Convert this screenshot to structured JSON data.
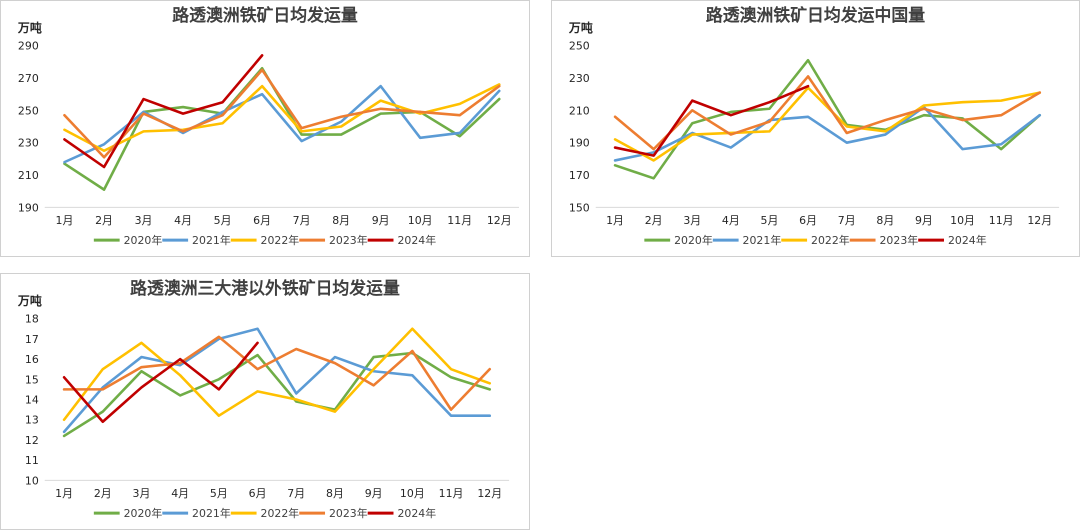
{
  "chart_data": [
    {
      "type": "line",
      "title": "路透澳洲铁矿日均发运量",
      "ylabel": "万吨",
      "xlabel": "",
      "categories": [
        "1月",
        "2月",
        "3月",
        "4月",
        "5月",
        "6月",
        "7月",
        "8月",
        "9月",
        "10月",
        "11月",
        "12月"
      ],
      "ylim": [
        190,
        290
      ],
      "yticks": [
        190,
        210,
        230,
        250,
        270,
        290
      ],
      "series": [
        {
          "name": "2020年",
          "color": "#70ad47",
          "values": [
            217,
            201,
            249,
            252,
            248,
            276,
            235,
            235,
            248,
            249,
            234,
            257
          ]
        },
        {
          "name": "2021年",
          "color": "#5b9bd5",
          "values": [
            218,
            229,
            249,
            236,
            249,
            260,
            231,
            243,
            265,
            233,
            236,
            262
          ]
        },
        {
          "name": "2022年",
          "color": "#ffc000",
          "values": [
            238,
            225,
            237,
            238,
            242,
            265,
            237,
            240,
            256,
            248,
            254,
            266
          ]
        },
        {
          "name": "2023年",
          "color": "#ed7d31",
          "values": [
            247,
            221,
            248,
            237,
            247,
            275,
            239,
            246,
            251,
            249,
            247,
            265
          ]
        },
        {
          "name": "2024年",
          "color": "#c00000",
          "values": [
            232,
            215,
            257,
            248,
            255,
            284,
            null,
            null,
            null,
            null,
            null,
            null
          ]
        }
      ]
    },
    {
      "type": "line",
      "title": "路透澳洲铁矿日均发运中国量",
      "ylabel": "万吨",
      "xlabel": "",
      "categories": [
        "1月",
        "2月",
        "3月",
        "4月",
        "5月",
        "6月",
        "7月",
        "8月",
        "9月",
        "10月",
        "11月",
        "12月"
      ],
      "ylim": [
        150,
        250
      ],
      "yticks": [
        150,
        170,
        190,
        210,
        230,
        250
      ],
      "series": [
        {
          "name": "2020年",
          "color": "#70ad47",
          "values": [
            176,
            168,
            202,
            209,
            211,
            241,
            201,
            198,
            207,
            205,
            186,
            207
          ]
        },
        {
          "name": "2021年",
          "color": "#5b9bd5",
          "values": [
            179,
            184,
            196,
            187,
            204,
            206,
            190,
            195,
            212,
            186,
            189,
            207
          ]
        },
        {
          "name": "2022年",
          "color": "#ffc000",
          "values": [
            192,
            179,
            195,
            196,
            197,
            224,
            200,
            197,
            213,
            215,
            216,
            221
          ]
        },
        {
          "name": "2023年",
          "color": "#ed7d31",
          "values": [
            206,
            186,
            210,
            195,
            203,
            231,
            196,
            204,
            211,
            204,
            207,
            221
          ]
        },
        {
          "name": "2024年",
          "color": "#c00000",
          "values": [
            187,
            182,
            216,
            207,
            215,
            225,
            null,
            null,
            null,
            null,
            null,
            null
          ]
        }
      ]
    },
    {
      "type": "line",
      "title": "路透澳洲三大港以外铁矿日均发运量",
      "ylabel": "万吨",
      "xlabel": "",
      "categories": [
        "1月",
        "2月",
        "3月",
        "4月",
        "5月",
        "6月",
        "7月",
        "8月",
        "9月",
        "10月",
        "11月",
        "12月"
      ],
      "ylim": [
        10,
        18
      ],
      "yticks": [
        10,
        11,
        12,
        13,
        14,
        15,
        16,
        17,
        18
      ],
      "series": [
        {
          "name": "2020年",
          "color": "#70ad47",
          "values": [
            12.2,
            13.4,
            15.4,
            14.2,
            15.0,
            16.2,
            13.9,
            13.5,
            16.1,
            16.3,
            15.1,
            14.5
          ]
        },
        {
          "name": "2021年",
          "color": "#5b9bd5",
          "values": [
            12.4,
            14.6,
            16.1,
            15.7,
            17.0,
            17.5,
            14.3,
            16.1,
            15.4,
            15.2,
            13.2,
            13.2
          ]
        },
        {
          "name": "2022年",
          "color": "#ffc000",
          "values": [
            13.0,
            15.5,
            16.8,
            15.2,
            13.2,
            14.4,
            14.0,
            13.4,
            15.5,
            17.5,
            15.5,
            14.8
          ]
        },
        {
          "name": "2023年",
          "color": "#ed7d31",
          "values": [
            14.5,
            14.5,
            15.6,
            15.8,
            17.1,
            15.5,
            16.5,
            15.8,
            14.7,
            16.4,
            13.5,
            15.5
          ]
        },
        {
          "name": "2024年",
          "color": "#c00000",
          "values": [
            15.1,
            12.9,
            14.6,
            16.0,
            14.5,
            16.8,
            null,
            null,
            null,
            null,
            null,
            null
          ]
        }
      ]
    }
  ]
}
